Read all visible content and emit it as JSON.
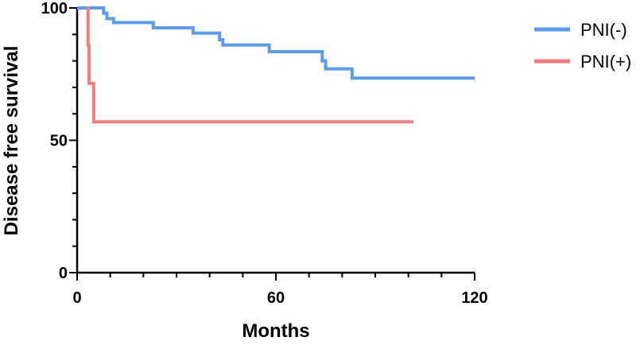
{
  "chart_data": {
    "type": "line",
    "step": true,
    "xlabel": "Months",
    "ylabel": "Disease free survival",
    "xlim": [
      0,
      120
    ],
    "ylim": [
      0,
      100
    ],
    "xticks": [
      0,
      60,
      120
    ],
    "xminor_step": 10,
    "yticks": [
      0,
      50,
      100
    ],
    "yminor_step": 10,
    "grid": false,
    "legend_position": "top-right",
    "series": [
      {
        "name": "PNI(-)",
        "color": "#5B9BE8",
        "x": [
          0,
          8,
          9,
          11,
          23,
          35,
          43,
          44,
          58,
          74,
          75,
          83,
          120
        ],
        "y": [
          100,
          98,
          96,
          94.5,
          92.5,
          90.5,
          88,
          86,
          83.5,
          80,
          77,
          73.5,
          73.5
        ]
      },
      {
        "name": "PNI(+)",
        "color": "#F08080",
        "x": [
          3,
          3.3,
          3.6,
          4,
          5,
          101.5
        ],
        "y": [
          100,
          86,
          71.5,
          71.5,
          57,
          57
        ]
      }
    ]
  }
}
